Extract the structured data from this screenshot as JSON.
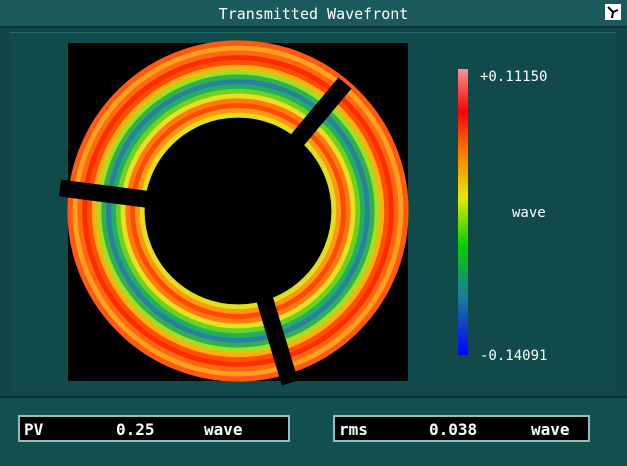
{
  "title": "Transmitted Wavefront",
  "colorbar": {
    "max": "+0.11150",
    "unit": "wave",
    "min": "-0.14091"
  },
  "stats": [
    {
      "label": "PV",
      "value": "0.25",
      "unit": "wave"
    },
    {
      "label": "rms",
      "value": "0.038",
      "unit": "wave"
    }
  ]
}
